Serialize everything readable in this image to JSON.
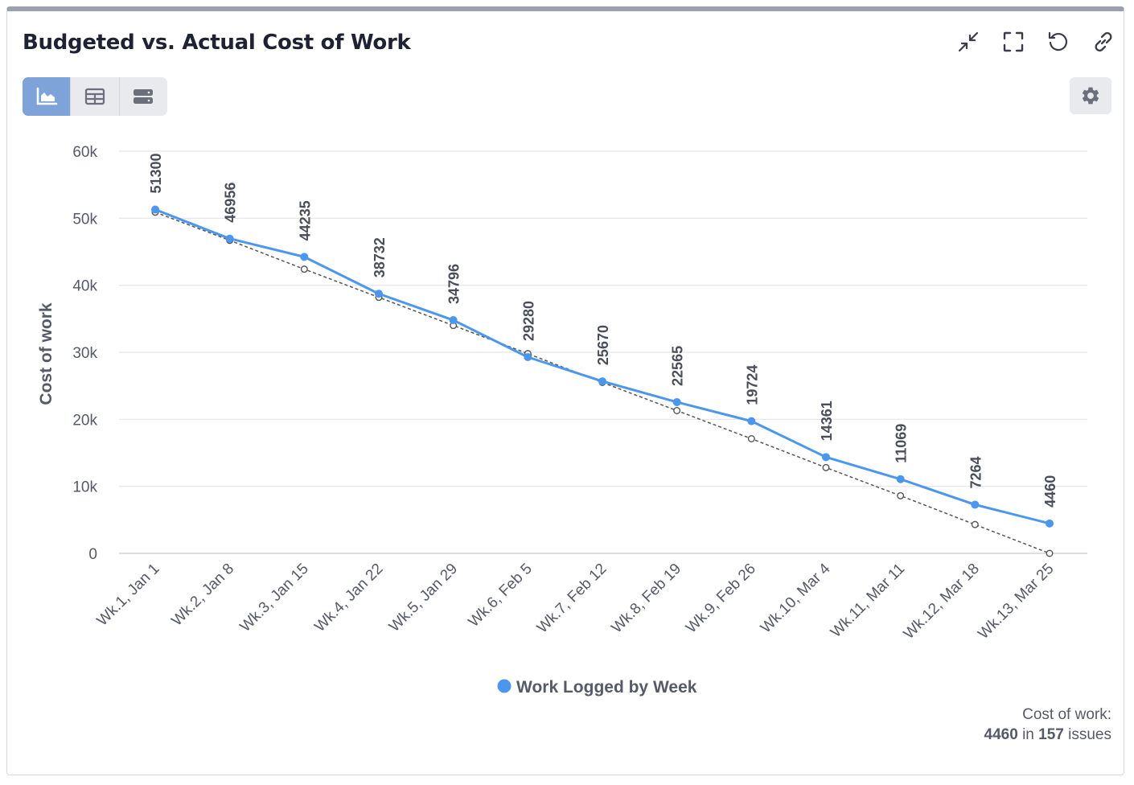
{
  "header": {
    "title": "Budgeted vs. Actual Cost of Work",
    "icons": [
      "collapse-icon",
      "fullscreen-icon",
      "reset-icon",
      "link-icon"
    ]
  },
  "view_toggle": {
    "active": "chart",
    "items": [
      "chart-view-icon",
      "table-view-icon",
      "list-view-icon"
    ]
  },
  "settings": {
    "icon": "gear-icon"
  },
  "chart_data": {
    "type": "line",
    "ylabel": "Cost of work",
    "xlabel": "",
    "ylim": [
      0,
      60000
    ],
    "yticks": [
      "0",
      "10k",
      "20k",
      "30k",
      "40k",
      "50k",
      "60k"
    ],
    "ytick_values": [
      0,
      10000,
      20000,
      30000,
      40000,
      50000,
      60000
    ],
    "categories": [
      "Wk.1, Jan 1",
      "Wk.2, Jan 8",
      "Wk.3, Jan 15",
      "Wk.4, Jan 22",
      "Wk.5, Jan 29",
      "Wk.6, Feb 5",
      "Wk.7, Feb 12",
      "Wk.8, Feb 19",
      "Wk.9, Feb 26",
      "Wk.10, Mar 4",
      "Wk.11, Mar 11",
      "Wk.12, Mar 18",
      "Wk.13, Mar 25"
    ],
    "grid": true,
    "legend_position": "bottom-center",
    "series": [
      {
        "name": "Work Logged by Week",
        "color": "#4c97ee",
        "values": [
          51300,
          46956,
          44235,
          38732,
          34796,
          29280,
          25670,
          22565,
          19724,
          14361,
          11069,
          7264,
          4460
        ],
        "data_labels": true
      },
      {
        "color": "#555555",
        "style": "dashed",
        "values": [
          50900,
          46700,
          42400,
          38200,
          34000,
          29800,
          25500,
          21300,
          17100,
          12800,
          8600,
          4300,
          0
        ]
      }
    ]
  },
  "footer": {
    "label": "Cost of work:",
    "value": "4460",
    "connector": "in",
    "count": "157",
    "unit": "issues"
  }
}
